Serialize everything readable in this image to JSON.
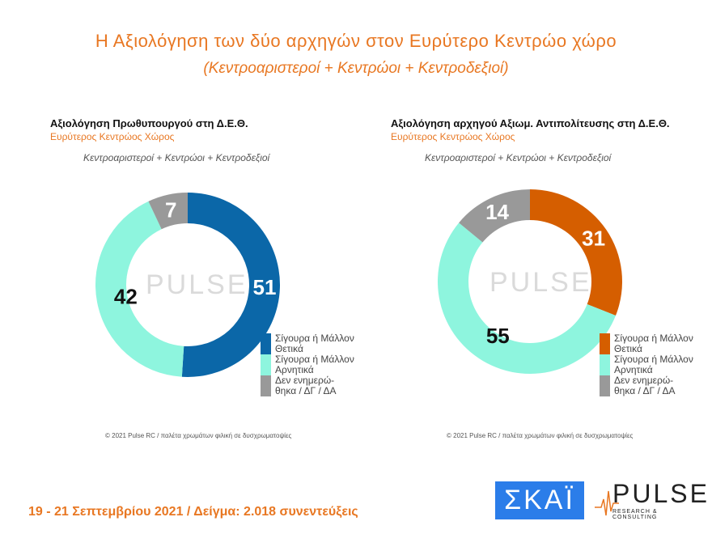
{
  "header": {
    "title": "Η Αξιολόγηση των δύο αρχηγών στον Ευρύτερο Κεντρώο χώρο",
    "subtitle": "(Κεντροαριστεροί + Κεντρώοι + Κεντροδεξιοί)"
  },
  "chart_data": [
    {
      "type": "pie",
      "donut": true,
      "title": "Αξιολόγηση Πρωθυπουργού στη Δ.Ε.Θ.",
      "subtitle": "Ευρύτερος Κεντρώος Χώρος",
      "note": "Κεντροαριστεροί + Κεντρώοι + Κεντροδεξιοί",
      "categories": [
        "Σίγουρα ή Μάλλον Θετικά",
        "Σίγουρα ή Μάλλον Αρνητικά",
        "Δεν ενημερώθηκα / ΔΓ / ΔΑ"
      ],
      "legend_labels": [
        [
          "Σίγουρα ή Μάλλον",
          "Θετικά"
        ],
        [
          "Σίγουρα ή Μάλλον",
          "Αρνητικά"
        ],
        [
          "Δεν ενημερώ-",
          "θηκα / ΔΓ / ΔΑ"
        ]
      ],
      "values": [
        51,
        42,
        7
      ],
      "colors": [
        "#0b67a8",
        "#8ef5de",
        "#999999"
      ],
      "legend": "bottom-right",
      "copyright": "© 2021 Pulse RC  /  παλέτα χρωμάτων φιλική σε δυσχρωματοψίες"
    },
    {
      "type": "pie",
      "donut": true,
      "title": "Αξιολόγηση αρχηγού Αξιωμ. Αντιπολίτευσης στη Δ.Ε.Θ.",
      "subtitle": "Ευρύτερος Κεντρώος Χώρος",
      "note": "Κεντροαριστεροί + Κεντρώοι + Κεντροδεξιοί",
      "categories": [
        "Σίγουρα ή Μάλλον Θετικά",
        "Σίγουρα ή Μάλλον Αρνητικά",
        "Δεν ενημερώθηκα / ΔΓ / ΔΑ"
      ],
      "legend_labels": [
        [
          "Σίγουρα ή Μάλλον",
          "Θετικά"
        ],
        [
          "Σίγουρα ή Μάλλον",
          "Αρνητικά"
        ],
        [
          "Δεν ενημερώ-",
          "θηκα / ΔΓ / ΔΑ"
        ]
      ],
      "values": [
        31,
        55,
        14
      ],
      "colors": [
        "#d55e00",
        "#8ef5de",
        "#999999"
      ],
      "legend": "bottom-right",
      "copyright": "© 2021 Pulse RC  /  παλέτα χρωμάτων φιλική σε δυσχρωματοψίες"
    }
  ],
  "watermark": "PULSE",
  "footer": "19 - 21 Σεπτεμβρίου 2021  /  Δείγμα:  2.018 συνεντεύξεις",
  "logos": {
    "skai": "ΣΚΑΪ",
    "pulse": "PULSE",
    "pulse_sub": "RESEARCH & CONSULTING"
  }
}
